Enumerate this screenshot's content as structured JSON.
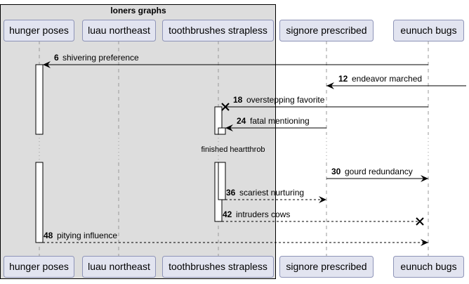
{
  "group": {
    "title": "loners graphs"
  },
  "participants": [
    {
      "id": "hunger",
      "label": "hunger poses"
    },
    {
      "id": "luau",
      "label": "luau northeast"
    },
    {
      "id": "tooth",
      "label": "toothbrushes strapless"
    },
    {
      "id": "signore",
      "label": "signore prescribed"
    },
    {
      "id": "eunuch",
      "label": "eunuch bugs"
    }
  ],
  "messages": [
    {
      "num": "6",
      "text": "shivering preference",
      "from": "eunuch",
      "to": "hunger",
      "style": "solid",
      "head": "arrow"
    },
    {
      "num": "12",
      "text": "endeavor marched",
      "from": "right-edge",
      "to": "signore",
      "style": "solid",
      "head": "arrow"
    },
    {
      "num": "18",
      "text": "overstepping favorite",
      "from": "eunuch",
      "to": "tooth",
      "style": "solid",
      "head": "cross"
    },
    {
      "num": "24",
      "text": "fatal mentioning",
      "from": "signore",
      "to": "tooth",
      "style": "solid",
      "head": "arrow"
    },
    {
      "num": "30",
      "text": "gourd redundancy",
      "from": "signore",
      "to": "eunuch",
      "style": "solid",
      "head": "arrow"
    },
    {
      "num": "36",
      "text": "scariest nurturing",
      "from": "tooth",
      "to": "signore",
      "style": "dashed",
      "head": "arrow"
    },
    {
      "num": "42",
      "text": "intruders cows",
      "from": "tooth",
      "to": "eunuch",
      "style": "dashed",
      "head": "cross"
    },
    {
      "num": "48",
      "text": "pitying influence",
      "from": "hunger",
      "to": "eunuch",
      "style": "dashed",
      "head": "arrow"
    }
  ],
  "delay": {
    "text": "finished heartthrob"
  },
  "colors": {
    "group_fill": "#dddddd",
    "participant_fill": "#e2e4f0",
    "participant_border": "#8e94b8",
    "lifeline": "#999999",
    "line": "#000000"
  }
}
